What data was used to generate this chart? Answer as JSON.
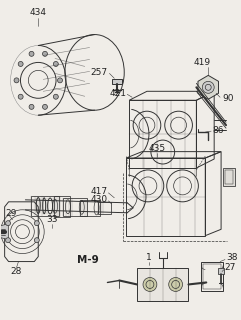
{
  "bg": "#f0ede8",
  "lc": "#333333",
  "lw": 0.7,
  "fs": 6.5,
  "fc": "#222222"
}
